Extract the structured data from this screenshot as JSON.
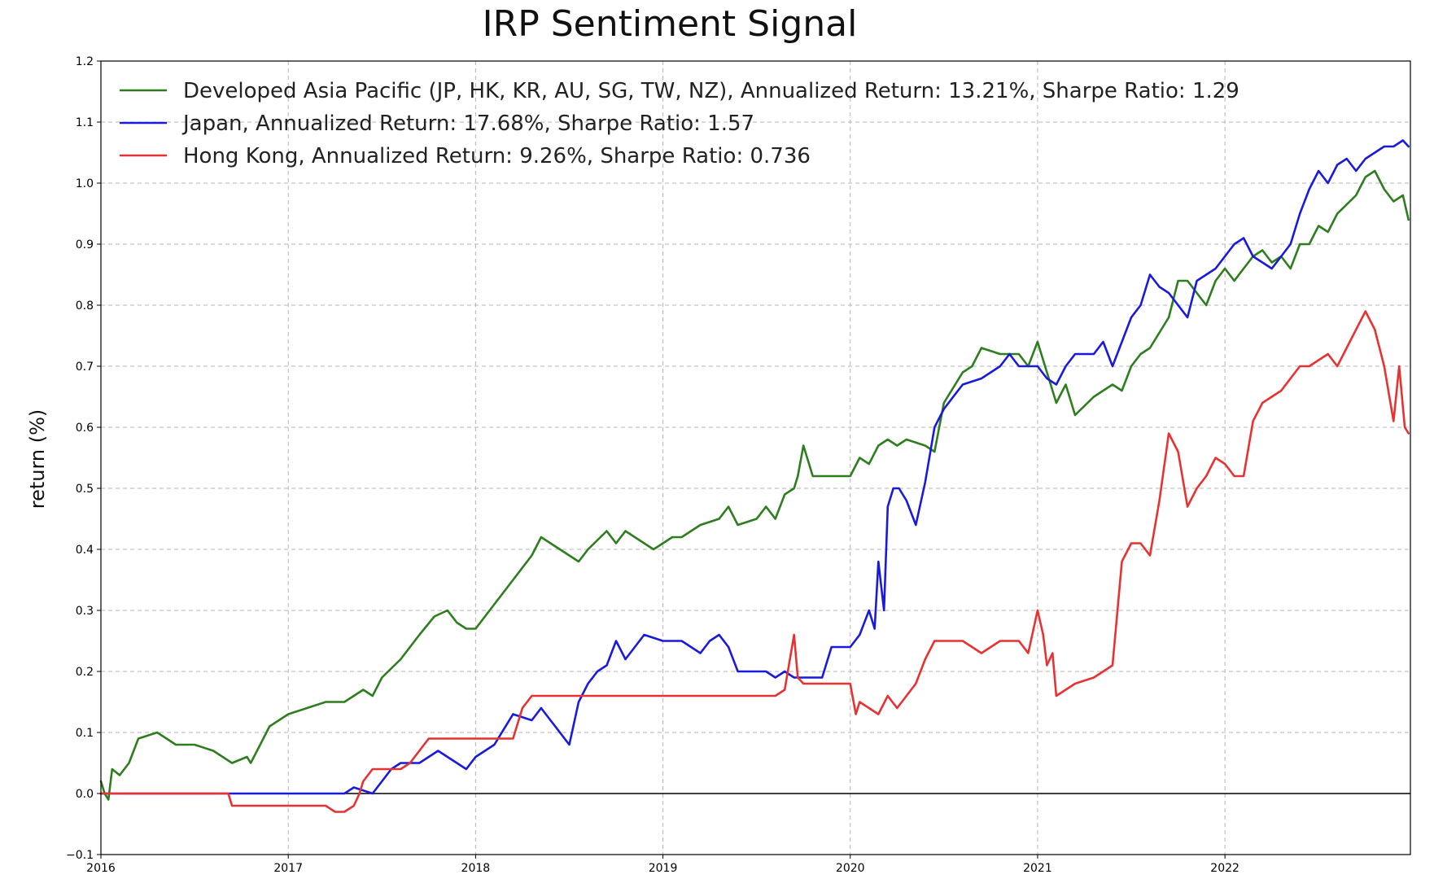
{
  "chart_data": {
    "type": "line",
    "title": "IRP Sentiment Signal",
    "xlabel": "",
    "ylabel": "return (%)",
    "xlim": [
      2016.0,
      2022.99
    ],
    "ylim": [
      -0.1,
      1.2
    ],
    "x_ticks": [
      2016,
      2017,
      2018,
      2019,
      2020,
      2021,
      2022
    ],
    "x_tick_labels": [
      "2016",
      "2017",
      "2018",
      "2019",
      "2020",
      "2021",
      "2022"
    ],
    "y_ticks": [
      -0.1,
      0.0,
      0.1,
      0.2,
      0.3,
      0.4,
      0.5,
      0.6,
      0.7,
      0.8,
      0.9,
      1.0,
      1.1,
      1.2
    ],
    "y_tick_labels": [
      "−0.1",
      "0.0",
      "0.1",
      "0.2",
      "0.3",
      "0.4",
      "0.5",
      "0.6",
      "0.7",
      "0.8",
      "0.9",
      "1.0",
      "1.1",
      "1.2"
    ],
    "grid": true,
    "legend_position": "top-left",
    "zero_line": true,
    "series": [
      {
        "name": "Developed Asia Pacific (JP, HK, KR, AU, SG, TW, NZ), Annualized Return: 13.21%, Sharpe Ratio: 1.29",
        "color": "#2e7d1f",
        "x": [
          2016.0,
          2016.02,
          2016.04,
          2016.06,
          2016.1,
          2016.15,
          2016.2,
          2016.3,
          2016.35,
          2016.4,
          2016.5,
          2016.6,
          2016.7,
          2016.78,
          2016.8,
          2016.85,
          2016.9,
          2017.0,
          2017.1,
          2017.2,
          2017.3,
          2017.4,
          2017.45,
          2017.5,
          2017.6,
          2017.7,
          2017.78,
          2017.85,
          2017.9,
          2017.95,
          2018.0,
          2018.1,
          2018.2,
          2018.3,
          2018.35,
          2018.4,
          2018.5,
          2018.55,
          2018.6,
          2018.7,
          2018.75,
          2018.8,
          2018.9,
          2018.95,
          2019.0,
          2019.05,
          2019.1,
          2019.2,
          2019.3,
          2019.35,
          2019.4,
          2019.5,
          2019.55,
          2019.6,
          2019.65,
          2019.7,
          2019.72,
          2019.75,
          2019.8,
          2019.9,
          2020.0,
          2020.05,
          2020.1,
          2020.15,
          2020.2,
          2020.25,
          2020.3,
          2020.4,
          2020.45,
          2020.5,
          2020.6,
          2020.65,
          2020.7,
          2020.8,
          2020.9,
          2020.95,
          2021.0,
          2021.05,
          2021.1,
          2021.15,
          2021.2,
          2021.3,
          2021.4,
          2021.45,
          2021.5,
          2021.55,
          2021.6,
          2021.7,
          2021.75,
          2021.8,
          2021.9,
          2021.95,
          2022.0,
          2022.05,
          2022.1,
          2022.15,
          2022.2,
          2022.25,
          2022.3,
          2022.35,
          2022.4,
          2022.45,
          2022.5,
          2022.55,
          2022.6,
          2022.7,
          2022.75,
          2022.8,
          2022.85,
          2022.9,
          2022.95,
          2022.98
        ],
        "values": [
          0.02,
          0.0,
          -0.01,
          0.04,
          0.03,
          0.05,
          0.09,
          0.1,
          0.09,
          0.08,
          0.08,
          0.07,
          0.05,
          0.06,
          0.05,
          0.08,
          0.11,
          0.13,
          0.14,
          0.15,
          0.15,
          0.17,
          0.16,
          0.19,
          0.22,
          0.26,
          0.29,
          0.3,
          0.28,
          0.27,
          0.27,
          0.31,
          0.35,
          0.39,
          0.42,
          0.41,
          0.39,
          0.38,
          0.4,
          0.43,
          0.41,
          0.43,
          0.41,
          0.4,
          0.41,
          0.42,
          0.42,
          0.44,
          0.45,
          0.47,
          0.44,
          0.45,
          0.47,
          0.45,
          0.49,
          0.5,
          0.52,
          0.57,
          0.52,
          0.52,
          0.52,
          0.55,
          0.54,
          0.57,
          0.58,
          0.57,
          0.58,
          0.57,
          0.56,
          0.64,
          0.69,
          0.7,
          0.73,
          0.72,
          0.72,
          0.7,
          0.74,
          0.69,
          0.64,
          0.67,
          0.62,
          0.65,
          0.67,
          0.66,
          0.7,
          0.72,
          0.73,
          0.78,
          0.84,
          0.84,
          0.8,
          0.84,
          0.86,
          0.84,
          0.86,
          0.88,
          0.89,
          0.87,
          0.88,
          0.86,
          0.9,
          0.9,
          0.93,
          0.92,
          0.95,
          0.98,
          1.01,
          1.02,
          0.99,
          0.97,
          0.98,
          0.94
        ]
      },
      {
        "name": "Japan, Annualized Return: 17.68%, Sharpe Ratio: 1.57",
        "color": "#1a1adb",
        "x": [
          2016.0,
          2016.5,
          2017.0,
          2017.15,
          2017.2,
          2017.3,
          2017.35,
          2017.45,
          2017.5,
          2017.55,
          2017.6,
          2017.7,
          2017.8,
          2017.85,
          2017.9,
          2017.95,
          2018.0,
          2018.1,
          2018.2,
          2018.3,
          2018.35,
          2018.4,
          2018.45,
          2018.5,
          2018.55,
          2018.6,
          2018.65,
          2018.7,
          2018.75,
          2018.8,
          2018.85,
          2018.9,
          2019.0,
          2019.1,
          2019.2,
          2019.25,
          2019.3,
          2019.35,
          2019.4,
          2019.45,
          2019.5,
          2019.55,
          2019.6,
          2019.65,
          2019.7,
          2019.75,
          2019.8,
          2019.85,
          2019.9,
          2020.0,
          2020.05,
          2020.1,
          2020.13,
          2020.15,
          2020.18,
          2020.2,
          2020.23,
          2020.26,
          2020.3,
          2020.35,
          2020.4,
          2020.45,
          2020.5,
          2020.55,
          2020.6,
          2020.7,
          2020.8,
          2020.85,
          2020.9,
          2021.0,
          2021.05,
          2021.1,
          2021.15,
          2021.2,
          2021.3,
          2021.35,
          2021.4,
          2021.45,
          2021.5,
          2021.55,
          2021.6,
          2021.65,
          2021.7,
          2021.75,
          2021.8,
          2021.85,
          2021.9,
          2021.95,
          2022.0,
          2022.05,
          2022.1,
          2022.15,
          2022.2,
          2022.25,
          2022.3,
          2022.35,
          2022.4,
          2022.45,
          2022.5,
          2022.55,
          2022.6,
          2022.65,
          2022.7,
          2022.75,
          2022.8,
          2022.85,
          2022.9,
          2022.95,
          2022.98
        ],
        "values": [
          0.0,
          0.0,
          0.0,
          0.0,
          0.0,
          0.0,
          0.01,
          0.0,
          0.02,
          0.04,
          0.05,
          0.05,
          0.07,
          0.06,
          0.05,
          0.04,
          0.06,
          0.08,
          0.13,
          0.12,
          0.14,
          0.12,
          0.1,
          0.08,
          0.15,
          0.18,
          0.2,
          0.21,
          0.25,
          0.22,
          0.24,
          0.26,
          0.25,
          0.25,
          0.23,
          0.25,
          0.26,
          0.24,
          0.2,
          0.2,
          0.2,
          0.2,
          0.19,
          0.2,
          0.19,
          0.19,
          0.19,
          0.19,
          0.24,
          0.24,
          0.26,
          0.3,
          0.27,
          0.38,
          0.3,
          0.47,
          0.5,
          0.5,
          0.48,
          0.44,
          0.51,
          0.6,
          0.63,
          0.65,
          0.67,
          0.68,
          0.7,
          0.72,
          0.7,
          0.7,
          0.68,
          0.67,
          0.7,
          0.72,
          0.72,
          0.74,
          0.7,
          0.74,
          0.78,
          0.8,
          0.85,
          0.83,
          0.82,
          0.8,
          0.78,
          0.84,
          0.85,
          0.86,
          0.88,
          0.9,
          0.91,
          0.88,
          0.87,
          0.86,
          0.88,
          0.9,
          0.95,
          0.99,
          1.02,
          1.0,
          1.03,
          1.04,
          1.02,
          1.04,
          1.05,
          1.06,
          1.06,
          1.07,
          1.06
        ]
      },
      {
        "name": "Hong Kong, Annualized Return: 9.26%, Sharpe Ratio: 0.736",
        "color": "#e63232",
        "x": [
          2016.0,
          2016.5,
          2016.68,
          2016.7,
          2017.0,
          2017.1,
          2017.2,
          2017.25,
          2017.3,
          2017.35,
          2017.38,
          2017.4,
          2017.45,
          2017.5,
          2017.6,
          2017.65,
          2017.7,
          2017.75,
          2017.8,
          2017.9,
          2018.0,
          2018.1,
          2018.2,
          2018.25,
          2018.3,
          2018.4,
          2018.5,
          2018.6,
          2018.7,
          2018.8,
          2019.0,
          2019.2,
          2019.4,
          2019.6,
          2019.65,
          2019.7,
          2019.72,
          2019.75,
          2019.8,
          2020.0,
          2020.03,
          2020.05,
          2020.1,
          2020.15,
          2020.2,
          2020.25,
          2020.3,
          2020.35,
          2020.4,
          2020.45,
          2020.5,
          2020.6,
          2020.7,
          2020.8,
          2020.9,
          2020.95,
          2021.0,
          2021.03,
          2021.05,
          2021.08,
          2021.1,
          2021.15,
          2021.2,
          2021.3,
          2021.35,
          2021.4,
          2021.45,
          2021.5,
          2021.55,
          2021.6,
          2021.65,
          2021.7,
          2021.75,
          2021.8,
          2021.85,
          2021.9,
          2021.95,
          2022.0,
          2022.05,
          2022.1,
          2022.15,
          2022.2,
          2022.3,
          2022.4,
          2022.45,
          2022.5,
          2022.55,
          2022.6,
          2022.65,
          2022.7,
          2022.75,
          2022.8,
          2022.85,
          2022.9,
          2022.93,
          2022.96,
          2022.98
        ],
        "values": [
          0.0,
          0.0,
          0.0,
          -0.02,
          -0.02,
          -0.02,
          -0.02,
          -0.03,
          -0.03,
          -0.02,
          0.0,
          0.02,
          0.04,
          0.04,
          0.04,
          0.05,
          0.07,
          0.09,
          0.09,
          0.09,
          0.09,
          0.09,
          0.09,
          0.14,
          0.16,
          0.16,
          0.16,
          0.16,
          0.16,
          0.16,
          0.16,
          0.16,
          0.16,
          0.16,
          0.17,
          0.26,
          0.19,
          0.18,
          0.18,
          0.18,
          0.13,
          0.15,
          0.14,
          0.13,
          0.16,
          0.14,
          0.16,
          0.18,
          0.22,
          0.25,
          0.25,
          0.25,
          0.23,
          0.25,
          0.25,
          0.23,
          0.3,
          0.26,
          0.21,
          0.23,
          0.16,
          0.17,
          0.18,
          0.19,
          0.2,
          0.21,
          0.38,
          0.41,
          0.41,
          0.39,
          0.48,
          0.59,
          0.56,
          0.47,
          0.5,
          0.52,
          0.55,
          0.54,
          0.52,
          0.52,
          0.61,
          0.64,
          0.66,
          0.7,
          0.7,
          0.71,
          0.72,
          0.7,
          0.73,
          0.76,
          0.79,
          0.76,
          0.7,
          0.61,
          0.7,
          0.6,
          0.59
        ]
      }
    ]
  }
}
